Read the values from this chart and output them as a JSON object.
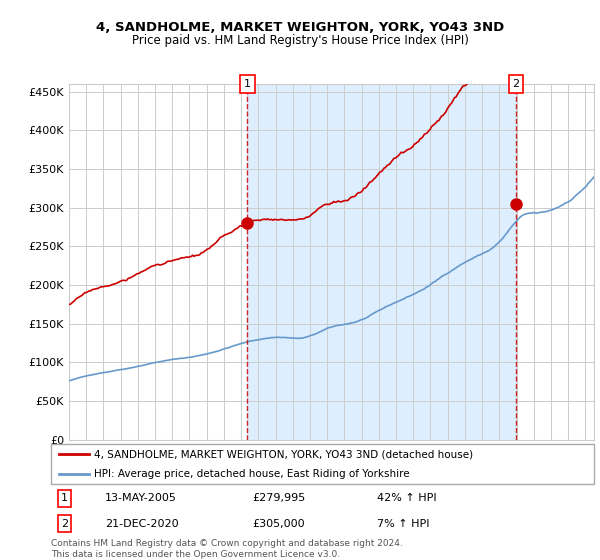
{
  "title1": "4, SANDHOLME, MARKET WEIGHTON, YORK, YO43 3ND",
  "title2": "Price paid vs. HM Land Registry's House Price Index (HPI)",
  "ylabel_ticks": [
    "£0",
    "£50K",
    "£100K",
    "£150K",
    "£200K",
    "£250K",
    "£300K",
    "£350K",
    "£400K",
    "£450K"
  ],
  "ylim": [
    0,
    460000
  ],
  "yticks": [
    0,
    50000,
    100000,
    150000,
    200000,
    250000,
    300000,
    350000,
    400000,
    450000
  ],
  "sale1_date_label": "13-MAY-2005",
  "sale1_price_label": "£279,995",
  "sale1_hpi_label": "42% ↑ HPI",
  "sale1_year": 2005.36,
  "sale1_price": 279995,
  "sale2_date_label": "21-DEC-2020",
  "sale2_price_label": "£305,000",
  "sale2_hpi_label": "7% ↑ HPI",
  "sale2_year": 2020.97,
  "sale2_price": 305000,
  "legend_line1": "4, SANDHOLME, MARKET WEIGHTON, YORK, YO43 3ND (detached house)",
  "legend_line2": "HPI: Average price, detached house, East Riding of Yorkshire",
  "footer": "Contains HM Land Registry data © Crown copyright and database right 2024.\nThis data is licensed under the Open Government Licence v3.0.",
  "bg_shaded_start": 2005.36,
  "bg_shaded_end": 2020.97,
  "hpi_color": "#6699cc",
  "sale_color": "#cc0000",
  "shaded_bg_color": "#ddeeff",
  "grid_color": "#cccccc",
  "plot_bg_color": "#ffffff",
  "xmin": 1995.0,
  "xmax": 2025.5
}
